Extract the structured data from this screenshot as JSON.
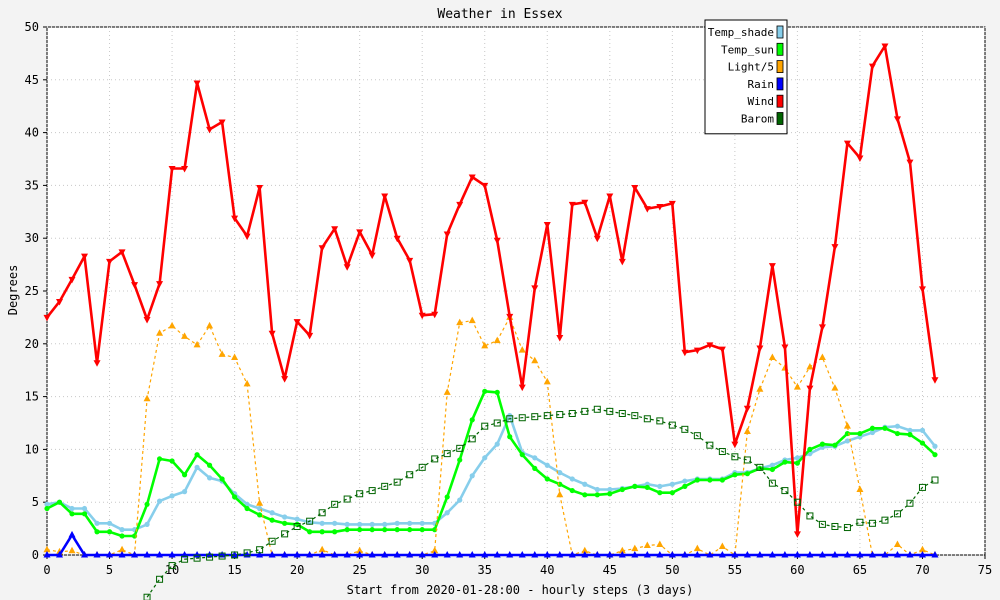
{
  "chart_data": {
    "type": "line",
    "title": "Weather in Essex",
    "xlabel": "Start from 2020-01-28:00 - hourly steps (3 days)",
    "ylabel": "Degrees",
    "xlim": [
      0,
      75
    ],
    "ylim": [
      0,
      50
    ],
    "xticks": [
      0,
      5,
      10,
      15,
      20,
      25,
      30,
      35,
      40,
      45,
      50,
      55,
      60,
      65,
      70,
      75
    ],
    "yticks": [
      0,
      5,
      10,
      15,
      20,
      25,
      30,
      35,
      40,
      45,
      50
    ],
    "grid": true,
    "legend_position": "top-right",
    "series": [
      {
        "name": "Temp_shade",
        "color": "#87ceeb",
        "marker": "circle",
        "dash": "",
        "x": [
          0,
          1,
          2,
          3,
          4,
          5,
          6,
          7,
          8,
          9,
          10,
          11,
          12,
          13,
          14,
          15,
          16,
          17,
          18,
          19,
          20,
          21,
          22,
          23,
          24,
          25,
          26,
          27,
          28,
          29,
          30,
          31,
          32,
          33,
          34,
          35,
          36,
          37,
          38,
          39,
          40,
          41,
          42,
          43,
          44,
          45,
          46,
          47,
          48,
          49,
          50,
          51,
          52,
          53,
          54,
          55,
          56,
          57,
          58,
          59,
          60,
          61,
          62,
          63,
          64,
          65,
          66,
          67,
          68,
          69,
          70,
          71
        ],
        "values": [
          4.8,
          5.0,
          4.4,
          4.4,
          3.0,
          3.0,
          2.4,
          2.4,
          2.9,
          5.1,
          5.6,
          6.0,
          8.3,
          7.3,
          7.0,
          5.8,
          4.8,
          4.4,
          4.0,
          3.6,
          3.4,
          3.1,
          3.0,
          3.0,
          2.9,
          2.9,
          2.9,
          2.9,
          3.0,
          3.0,
          3.0,
          3.0,
          4.0,
          5.2,
          7.5,
          9.2,
          10.5,
          13.2,
          9.7,
          9.2,
          8.5,
          7.8,
          7.2,
          6.7,
          6.2,
          6.2,
          6.3,
          6.5,
          6.7,
          6.5,
          6.7,
          7.0,
          7.2,
          7.2,
          7.2,
          7.8,
          7.8,
          8.2,
          8.5,
          9.0,
          9.2,
          9.6,
          10.2,
          10.3,
          10.8,
          11.2,
          11.6,
          12.1,
          12.2,
          11.8,
          11.8,
          10.3
        ]
      },
      {
        "name": "Temp_sun",
        "color": "#00ff00",
        "marker": "circle",
        "dash": "",
        "x": [
          0,
          1,
          2,
          3,
          4,
          5,
          6,
          7,
          8,
          9,
          10,
          11,
          12,
          13,
          14,
          15,
          16,
          17,
          18,
          19,
          20,
          21,
          22,
          23,
          24,
          25,
          26,
          27,
          28,
          29,
          30,
          31,
          32,
          33,
          34,
          35,
          36,
          37,
          38,
          39,
          40,
          41,
          42,
          43,
          44,
          45,
          46,
          47,
          48,
          49,
          50,
          51,
          52,
          53,
          54,
          55,
          56,
          57,
          58,
          59,
          60,
          61,
          62,
          63,
          64,
          65,
          66,
          67,
          68,
          69,
          70,
          71
        ],
        "values": [
          4.4,
          5.0,
          3.9,
          3.9,
          2.2,
          2.2,
          1.8,
          1.8,
          4.8,
          9.1,
          8.9,
          7.6,
          9.5,
          8.5,
          7.2,
          5.5,
          4.4,
          3.8,
          3.3,
          3.0,
          2.9,
          2.2,
          2.2,
          2.2,
          2.4,
          2.4,
          2.4,
          2.4,
          2.4,
          2.4,
          2.4,
          2.4,
          5.5,
          9.0,
          12.8,
          15.5,
          15.4,
          11.2,
          9.5,
          8.2,
          7.2,
          6.7,
          6.1,
          5.7,
          5.7,
          5.8,
          6.2,
          6.5,
          6.4,
          5.9,
          5.9,
          6.5,
          7.1,
          7.1,
          7.1,
          7.6,
          7.7,
          8.2,
          8.1,
          8.8,
          8.7,
          10.0,
          10.5,
          10.4,
          11.5,
          11.5,
          12.0,
          12.0,
          11.5,
          11.4,
          10.6,
          9.5
        ]
      },
      {
        "name": "Light/5",
        "color": "#ffa500",
        "marker": "triangle-up",
        "dash": "3,3",
        "x": [
          0,
          1,
          2,
          3,
          4,
          5,
          6,
          7,
          8,
          9,
          10,
          11,
          12,
          13,
          14,
          15,
          16,
          17,
          18,
          19,
          20,
          21,
          22,
          23,
          24,
          25,
          26,
          27,
          28,
          29,
          30,
          31,
          32,
          33,
          34,
          35,
          36,
          37,
          38,
          39,
          40,
          41,
          42,
          43,
          44,
          45,
          46,
          47,
          48,
          49,
          50,
          51,
          52,
          53,
          54,
          55,
          56,
          57,
          58,
          59,
          60,
          61,
          62,
          63,
          64,
          65,
          66,
          67,
          68,
          69,
          70,
          71
        ],
        "values": [
          0.5,
          0.3,
          0.4,
          0.0,
          0.0,
          0.0,
          0.5,
          0.0,
          14.8,
          21.0,
          21.7,
          20.7,
          19.9,
          21.7,
          19.0,
          18.7,
          16.2,
          4.9,
          0.0,
          0.0,
          0.0,
          0.0,
          0.5,
          0.0,
          0.0,
          0.4,
          0.0,
          0.0,
          0.0,
          0.0,
          0.0,
          0.4,
          15.4,
          22.0,
          22.2,
          19.8,
          20.3,
          22.5,
          19.4,
          18.4,
          16.4,
          5.7,
          0.0,
          0.4,
          0.0,
          0.0,
          0.4,
          0.6,
          0.9,
          1.0,
          0.0,
          0.0,
          0.6,
          0.0,
          0.8,
          0.0,
          11.7,
          15.7,
          18.7,
          17.7,
          15.9,
          17.8,
          18.7,
          15.8,
          12.2,
          6.2,
          0.0,
          0.0,
          1.0,
          0.0,
          0.5,
          0.0
        ]
      },
      {
        "name": "Rain",
        "color": "#0000ff",
        "marker": "triangle-up",
        "dash": "",
        "x": [
          0,
          1,
          2,
          3,
          4,
          5,
          6,
          7,
          8,
          9,
          10,
          11,
          12,
          13,
          14,
          15,
          16,
          17,
          18,
          19,
          20,
          21,
          22,
          23,
          24,
          25,
          26,
          27,
          28,
          29,
          30,
          31,
          32,
          33,
          34,
          35,
          36,
          37,
          38,
          39,
          40,
          41,
          42,
          43,
          44,
          45,
          46,
          47,
          48,
          49,
          50,
          51,
          52,
          53,
          54,
          55,
          56,
          57,
          58,
          59,
          60,
          61,
          62,
          63,
          64,
          65,
          66,
          67,
          68,
          69,
          70,
          71
        ],
        "values": [
          0,
          0,
          1.9,
          0,
          0,
          0,
          0,
          0,
          0,
          0,
          0,
          0,
          0,
          0,
          0,
          0,
          0,
          0,
          0,
          0,
          0,
          0,
          0,
          0,
          0,
          0,
          0,
          0,
          0,
          0,
          0,
          0,
          0,
          0,
          0,
          0,
          0,
          0,
          0,
          0,
          0,
          0,
          0,
          0,
          0,
          0,
          0,
          0,
          0,
          0,
          0,
          0,
          0,
          0,
          0,
          0,
          0,
          0,
          0,
          0,
          0,
          0,
          0,
          0,
          0,
          0,
          0,
          0,
          0,
          0,
          0,
          0
        ]
      },
      {
        "name": "Wind",
        "color": "#ff0000",
        "marker": "triangle-down",
        "dash": "",
        "x": [
          0,
          1,
          2,
          3,
          4,
          5,
          6,
          7,
          8,
          9,
          10,
          11,
          12,
          13,
          14,
          15,
          16,
          17,
          18,
          19,
          20,
          21,
          22,
          23,
          24,
          25,
          26,
          27,
          28,
          29,
          30,
          31,
          32,
          33,
          34,
          35,
          36,
          37,
          38,
          39,
          40,
          41,
          42,
          43,
          44,
          45,
          46,
          47,
          48,
          49,
          50,
          51,
          52,
          53,
          54,
          55,
          56,
          57,
          58,
          59,
          60,
          61,
          62,
          63,
          64,
          65,
          66,
          67,
          68,
          69,
          70,
          71
        ],
        "values": [
          22.5,
          24.0,
          26.1,
          28.3,
          18.2,
          27.8,
          28.7,
          25.6,
          22.3,
          25.7,
          36.6,
          36.6,
          44.7,
          40.3,
          41.0,
          31.9,
          30.2,
          34.8,
          21.0,
          16.7,
          22.1,
          20.8,
          29.1,
          30.9,
          27.3,
          30.6,
          28.4,
          34.0,
          30.0,
          27.9,
          22.7,
          22.8,
          30.4,
          33.2,
          35.8,
          35.0,
          29.8,
          22.6,
          15.9,
          25.3,
          31.3,
          20.6,
          33.2,
          33.4,
          30.0,
          34.0,
          27.8,
          34.8,
          32.8,
          33.0,
          33.3,
          19.2,
          19.4,
          19.9,
          19.5,
          10.5,
          13.9,
          19.6,
          27.4,
          19.7,
          2.0,
          15.8,
          21.6,
          29.2,
          39.0,
          37.6,
          46.3,
          48.2,
          41.3,
          37.2,
          25.2,
          16.6
        ]
      },
      {
        "name": "Barom",
        "color": "#006400",
        "marker": "square",
        "dash": "3,3",
        "x": [
          8,
          9,
          10,
          11,
          12,
          13,
          14,
          15,
          16,
          17,
          18,
          19,
          20,
          21,
          22,
          23,
          24,
          25,
          26,
          27,
          28,
          29,
          30,
          31,
          32,
          33,
          34,
          35,
          36,
          37,
          38,
          39,
          40,
          41,
          42,
          43,
          44,
          45,
          46,
          47,
          48,
          49,
          50,
          51,
          52,
          53,
          54,
          55,
          56,
          57,
          58,
          59,
          60,
          61,
          62,
          63,
          64,
          65,
          66,
          67,
          68,
          69,
          70,
          71
        ],
        "values": [
          -4.0,
          -2.3,
          -1.0,
          -0.4,
          -0.3,
          -0.2,
          -0.1,
          0.0,
          0.2,
          0.5,
          1.3,
          2.0,
          2.7,
          3.2,
          4.0,
          4.8,
          5.3,
          5.8,
          6.1,
          6.5,
          6.9,
          7.6,
          8.3,
          9.1,
          9.6,
          10.1,
          11.0,
          12.2,
          12.5,
          12.9,
          13.0,
          13.1,
          13.2,
          13.3,
          13.4,
          13.6,
          13.8,
          13.6,
          13.4,
          13.2,
          12.9,
          12.7,
          12.3,
          11.9,
          11.3,
          10.4,
          9.8,
          9.3,
          9.0,
          8.3,
          6.8,
          6.1,
          5.0,
          3.7,
          2.9,
          2.7,
          2.6,
          3.1,
          3.0,
          3.3,
          3.9,
          4.9,
          6.4,
          7.1
        ]
      }
    ]
  }
}
